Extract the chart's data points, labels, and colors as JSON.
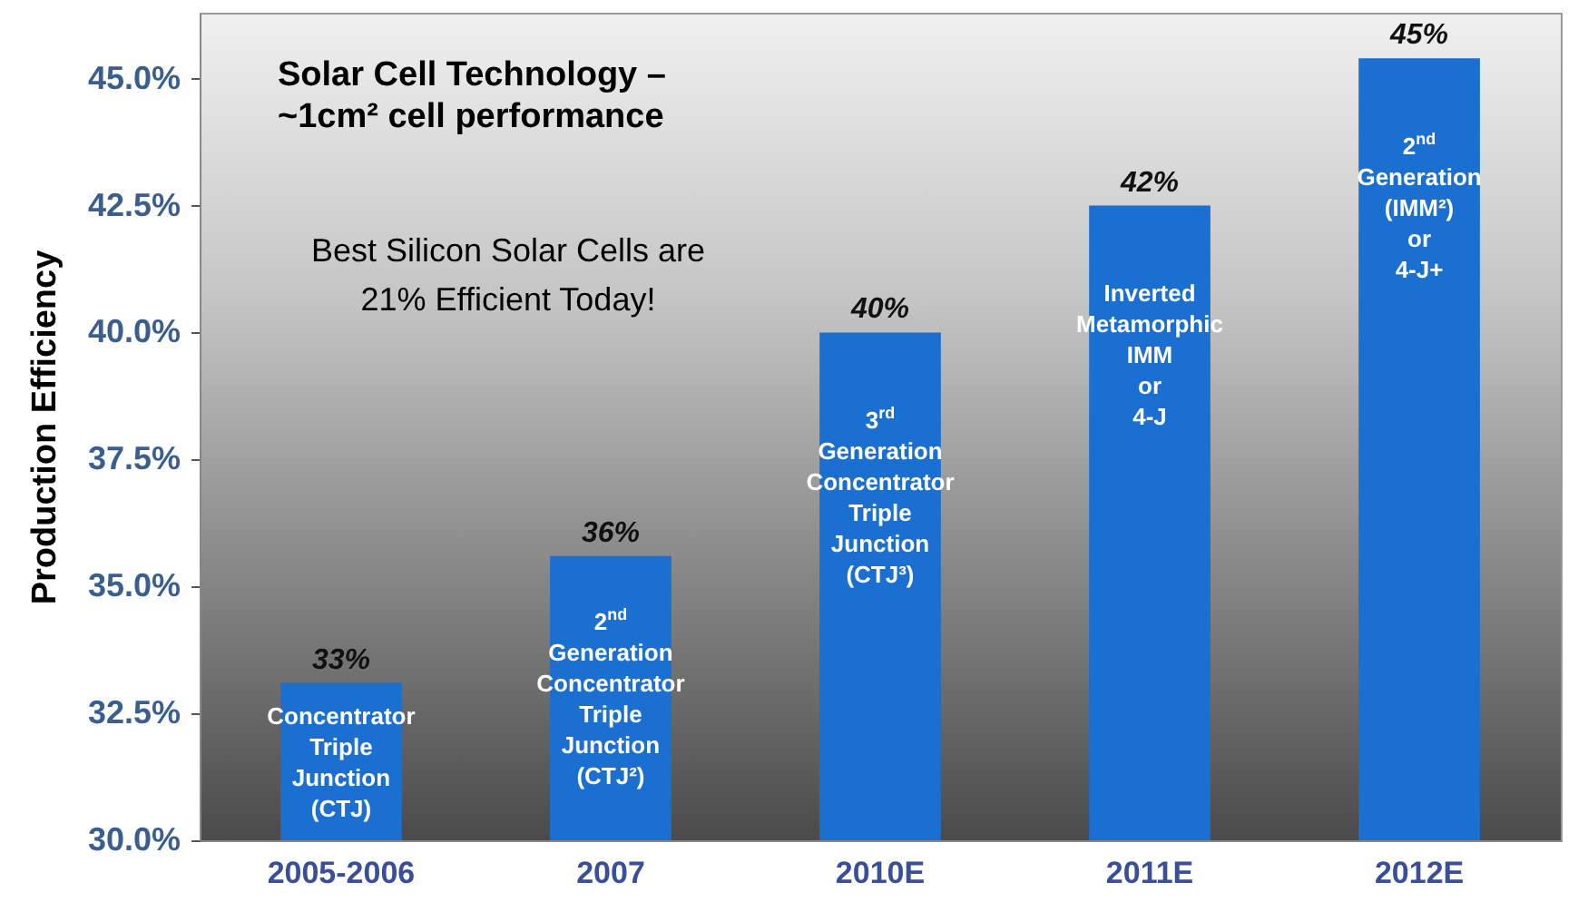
{
  "chart_data": {
    "type": "bar",
    "title": "Solar Cell Technology –\n~1cm² cell performance",
    "ylabel": "Production Efficiency",
    "categories": [
      "2005-2006",
      "2007",
      "2010E",
      "2011E",
      "2012E"
    ],
    "values": [
      33.1,
      35.6,
      40,
      42.5,
      45.4
    ],
    "value_labels": [
      "33%",
      "36%",
      "40%",
      "42%",
      "45%"
    ],
    "color": "#1a6fd0",
    "ylim": [
      30,
      46.3
    ],
    "yticks": [
      {
        "value": 30,
        "label": "30.0%"
      },
      {
        "value": 32.5,
        "label": "32.5%"
      },
      {
        "value": 35,
        "label": "35.0%"
      },
      {
        "value": 37.5,
        "label": "37.5%"
      },
      {
        "value": 40,
        "label": "40.0%"
      },
      {
        "value": 42.5,
        "label": "42.5%"
      },
      {
        "value": 45,
        "label": "45.0%"
      }
    ],
    "grid": false,
    "annotations": [
      "Best Silicon Solar Cells are\n21% Efficient Today!",
      "Concentrator\nTriple\nJunction\n(CTJ)",
      "2$^{nd}$\nGeneration\nConcentrator\nTriple\nJunction\n(CTJ²)",
      "3$^{rd}$\nGeneration\nConcentrator\nTriple\nJunction\n(CTJ³)",
      "Inverted\nMetamorphic\nIMM\nor\n4-J",
      "2$^{nd}$\nGeneration\n(IMM²)\nor\n4-J+"
    ]
  }
}
